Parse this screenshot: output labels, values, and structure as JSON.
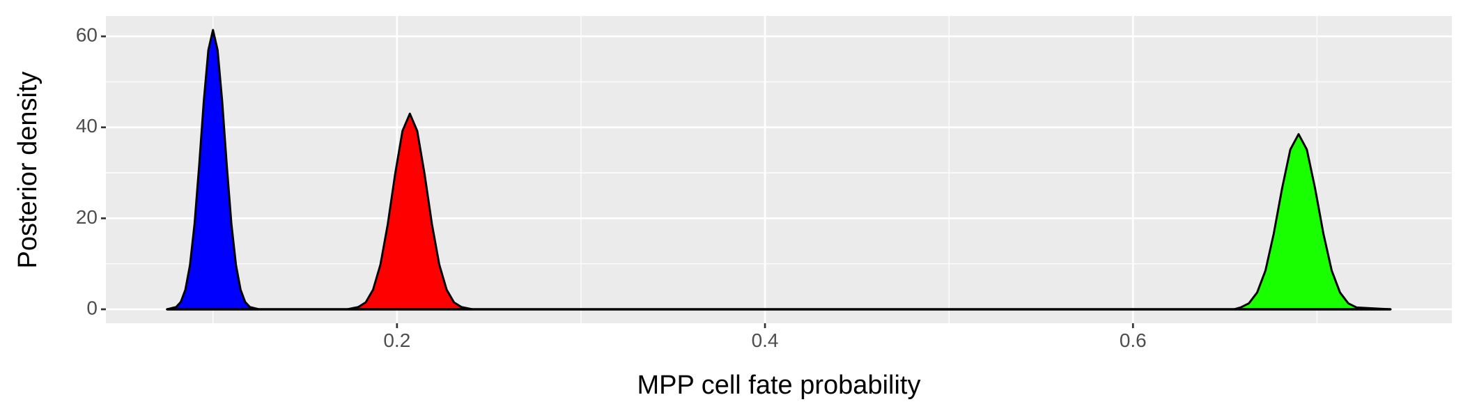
{
  "chart_data": {
    "type": "density",
    "x_label": "MPP cell fate probability",
    "y_label": "Posterior density",
    "xlim": [
      0.0418,
      0.7733
    ],
    "ylim": [
      -3.07,
      64.47
    ],
    "xticks": [
      0.2,
      0.4,
      0.6
    ],
    "yticks": [
      0,
      20,
      40,
      60
    ],
    "x_minor_grid": [
      0.1,
      0.3,
      0.5,
      0.7
    ],
    "y_minor_grid": [
      10,
      30,
      50
    ],
    "grid": true,
    "series": [
      {
        "color": "#0000ff",
        "x": [
          0.075,
          0.08,
          0.0825,
          0.085,
          0.0875,
          0.09,
          0.0925,
          0.095,
          0.0975,
          0.1,
          0.1025,
          0.105,
          0.1075,
          0.11,
          0.1125,
          0.115,
          0.1175,
          0.12,
          0.125
        ],
        "values": [
          0,
          0.5,
          1.6,
          4.3,
          9.7,
          18.8,
          31.6,
          45.7,
          57,
          61.4,
          57,
          45.7,
          31.6,
          18.8,
          9.7,
          4.3,
          1.6,
          0.5,
          0
        ]
      },
      {
        "color": "#ff0000",
        "x": [
          0.173,
          0.179,
          0.183,
          0.187,
          0.191,
          0.195,
          0.199,
          0.203,
          0.207,
          0.211,
          0.215,
          0.219,
          0.223,
          0.227,
          0.231,
          0.235,
          0.241
        ],
        "values": [
          0,
          0.5,
          1.5,
          4.3,
          9.8,
          18.7,
          29.7,
          39.2,
          43,
          39.2,
          29.7,
          18.7,
          9.8,
          4.3,
          1.5,
          0.5,
          0
        ]
      },
      {
        "color": "#1aff00",
        "x": [
          0.655,
          0.6585,
          0.663,
          0.6675,
          0.672,
          0.6765,
          0.681,
          0.6855,
          0.69,
          0.6945,
          0.699,
          0.7035,
          0.708,
          0.7125,
          0.717,
          0.7215,
          0.74
        ],
        "values": [
          0,
          0.4,
          1.3,
          3.7,
          8.5,
          16.6,
          26.5,
          35.1,
          38.5,
          35.1,
          26.5,
          16.6,
          8.5,
          3.7,
          1.3,
          0.4,
          0
        ]
      }
    ]
  }
}
